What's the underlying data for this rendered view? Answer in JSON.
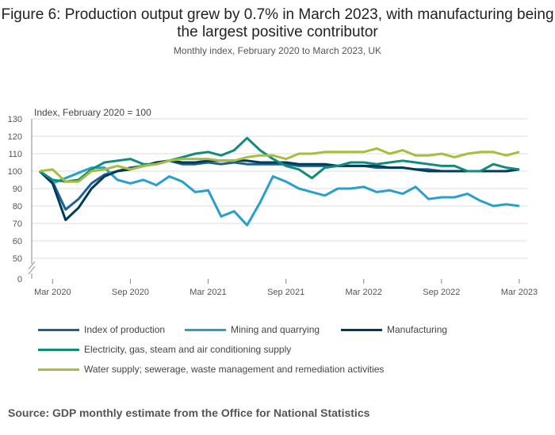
{
  "title": "Figure 6: Production output grew by 0.7% in March 2023, with manufacturing being the largest positive contributor",
  "subtitle": "Monthly index, February 2020 to March 2023, UK",
  "source": "Source: GDP monthly estimate from the Office for National Statistics",
  "chart_data": {
    "type": "line",
    "ylabel": "Index, February 2020 = 100",
    "ylim": [
      0,
      130
    ],
    "y_axis_break": [
      0,
      50
    ],
    "yticks": [
      "0",
      "50",
      "60",
      "70",
      "80",
      "90",
      "100",
      "110",
      "120",
      "130"
    ],
    "xticks": [
      "Mar 2020",
      "Sep 2020",
      "Mar 2021",
      "Sep 2021",
      "Mar 2022",
      "Sep 2022",
      "Mar 2023"
    ],
    "x_start": "Feb 2020",
    "x_end": "Mar 2023",
    "grid": true,
    "legend_position": "bottom",
    "series": [
      {
        "name": "Index of production",
        "color": "#206095",
        "values": [
          100,
          94,
          78,
          84,
          93,
          98,
          100,
          102,
          103,
          104,
          106,
          104,
          104,
          105,
          104,
          105,
          104,
          104,
          104,
          104,
          103,
          103,
          103,
          103,
          103,
          103,
          102,
          102,
          102,
          101,
          101,
          100,
          100,
          100,
          100,
          100,
          100,
          101
        ]
      },
      {
        "name": "Mining and quarrying",
        "color": "#27a0cc",
        "values": [
          100,
          93,
          96,
          99,
          102,
          102,
          95,
          93,
          95,
          92,
          97,
          94,
          88,
          89,
          74,
          77,
          69,
          82,
          97,
          94,
          90,
          88,
          86,
          90,
          90,
          91,
          88,
          89,
          87,
          91,
          84,
          85,
          85,
          87,
          83,
          80,
          81,
          80
        ]
      },
      {
        "name": "Manufacturing",
        "color": "#003c57",
        "values": [
          100,
          93,
          72,
          79,
          90,
          97,
          100,
          101,
          103,
          105,
          106,
          105,
          105,
          106,
          106,
          106,
          106,
          105,
          105,
          105,
          104,
          104,
          104,
          103,
          103,
          103,
          103,
          102,
          102,
          101,
          100,
          100,
          100,
          100,
          100,
          100,
          100,
          101
        ]
      },
      {
        "name": "Electricity, gas, steam and air conditioning supply",
        "color": "#118c7b",
        "values": [
          100,
          95,
          94,
          95,
          101,
          105,
          106,
          107,
          104,
          104,
          106,
          108,
          110,
          111,
          109,
          112,
          119,
          112,
          107,
          103,
          101,
          96,
          102,
          103,
          105,
          105,
          104,
          105,
          106,
          105,
          104,
          103,
          103,
          100,
          100,
          104,
          102,
          101
        ]
      },
      {
        "name": "Water supply; sewerage, waste management and remediation activities",
        "color": "#a8bd3a",
        "values": [
          100,
          101,
          94,
          94,
          100,
          101,
          103,
          101,
          103,
          104,
          106,
          107,
          107,
          107,
          106,
          106,
          108,
          109,
          109,
          107,
          110,
          110,
          111,
          111,
          111,
          111,
          113,
          110,
          112,
          109,
          109,
          110,
          108,
          110,
          111,
          111,
          109,
          111
        ]
      }
    ]
  }
}
